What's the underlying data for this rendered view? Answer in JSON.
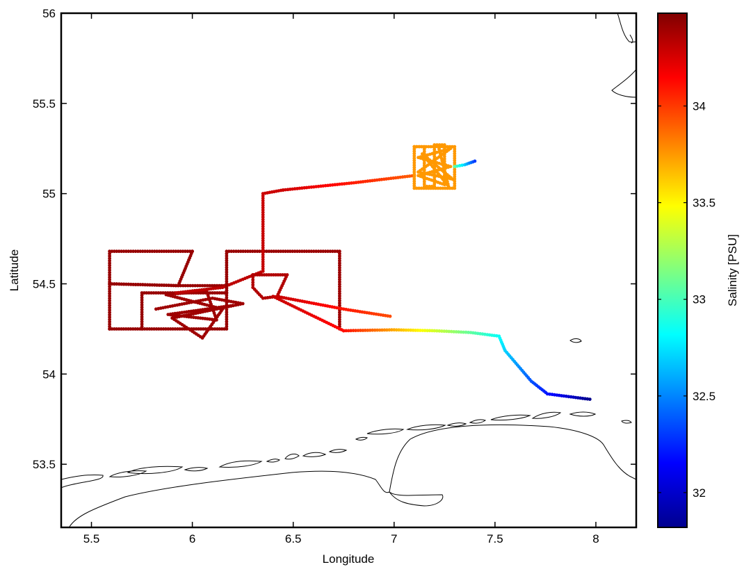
{
  "chart_data": {
    "type": "scatter",
    "title": "",
    "xlabel": "Longitude",
    "ylabel": "Latitude",
    "xlim": [
      5.35,
      8.2
    ],
    "ylim": [
      53.15,
      56
    ],
    "xticks": [
      5.5,
      6,
      6.5,
      7,
      7.5,
      8
    ],
    "xtick_labels": [
      "5.5",
      "6",
      "6.5",
      "7",
      "7.5",
      "8"
    ],
    "yticks": [
      53.5,
      54,
      54.5,
      55,
      55.5,
      56
    ],
    "ytick_labels": [
      "53.5",
      "54",
      "54.5",
      "55",
      "55.5",
      "56"
    ],
    "grid": false,
    "colorbar": {
      "label": "Salinity [PSU]",
      "colormap": "jet",
      "range": [
        31.82,
        34.48
      ],
      "ticks": [
        32,
        32.5,
        33,
        33.5,
        34
      ],
      "tick_labels": [
        "32",
        "32.5",
        "33",
        "33.5",
        "34"
      ]
    },
    "track_segments": [
      {
        "path": [
          [
            5.59,
            54.25
          ],
          [
            5.59,
            54.68
          ],
          [
            6.0,
            54.68
          ]
        ],
        "salinity": [
          34.42,
          34.42
        ]
      },
      {
        "path": [
          [
            6.0,
            54.68
          ],
          [
            5.93,
            54.49
          ],
          [
            5.59,
            54.5
          ],
          [
            5.93,
            54.49
          ],
          [
            6.17,
            54.49
          ],
          [
            6.17,
            54.25
          ],
          [
            5.59,
            54.25
          ]
        ],
        "salinity": [
          34.42,
          34.42
        ]
      },
      {
        "path": [
          [
            5.75,
            54.25
          ],
          [
            5.75,
            54.45
          ],
          [
            6.17,
            54.45
          ]
        ],
        "salinity": [
          34.42,
          34.42
        ]
      },
      {
        "path": [
          [
            5.82,
            54.36
          ],
          [
            6.1,
            54.42
          ],
          [
            6.25,
            54.39
          ],
          [
            5.9,
            54.31
          ],
          [
            6.05,
            54.2
          ],
          [
            6.15,
            54.36
          ],
          [
            5.87,
            54.44
          ],
          [
            6.07,
            54.46
          ],
          [
            6.12,
            54.3
          ],
          [
            5.88,
            54.33
          ],
          [
            6.2,
            54.38
          ]
        ],
        "salinity": [
          34.4,
          34.4
        ]
      },
      {
        "path": [
          [
            5.92,
            54.45
          ],
          [
            6.15,
            54.48
          ],
          [
            6.35,
            54.57
          ]
        ],
        "salinity": [
          34.32,
          34.32
        ]
      },
      {
        "path": [
          [
            6.17,
            54.45
          ],
          [
            6.17,
            54.68
          ],
          [
            6.73,
            54.68
          ],
          [
            6.73,
            54.25
          ]
        ],
        "salinity": [
          34.42,
          34.4
        ]
      },
      {
        "path": [
          [
            6.35,
            54.57
          ],
          [
            6.35,
            55.0
          ],
          [
            6.45,
            55.02
          ]
        ],
        "salinity": [
          34.3,
          34.28
        ]
      },
      {
        "path": [
          [
            6.3,
            54.55
          ],
          [
            6.47,
            54.55
          ],
          [
            6.42,
            54.43
          ],
          [
            6.35,
            54.42
          ],
          [
            6.3,
            54.48
          ],
          [
            6.3,
            54.55
          ]
        ],
        "salinity": [
          34.35,
          34.35
        ]
      },
      {
        "path": [
          [
            6.42,
            54.43
          ],
          [
            6.75,
            54.36
          ],
          [
            6.98,
            54.32
          ]
        ],
        "salinity": [
          34.3,
          33.95
        ]
      },
      {
        "path": [
          [
            6.4,
            54.43
          ],
          [
            6.75,
            54.24
          ]
        ],
        "salinity": [
          34.3,
          34.12
        ]
      },
      {
        "path": [
          [
            6.75,
            54.24
          ],
          [
            7.0,
            54.245
          ],
          [
            7.2,
            54.24
          ],
          [
            7.38,
            54.23
          ],
          [
            7.52,
            54.21
          ],
          [
            7.55,
            54.13
          ],
          [
            7.68,
            53.96
          ],
          [
            7.76,
            53.89
          ],
          [
            7.83,
            53.88
          ],
          [
            7.97,
            53.86
          ]
        ],
        "salinity": [
          34.12,
          31.85
        ]
      },
      {
        "path": [
          [
            6.45,
            55.02
          ],
          [
            6.8,
            55.06
          ],
          [
            7.1,
            55.1
          ]
        ],
        "salinity": [
          34.28,
          33.9
        ]
      },
      {
        "path": [
          [
            7.1,
            55.26
          ],
          [
            7.3,
            55.26
          ],
          [
            7.3,
            55.03
          ],
          [
            7.1,
            55.03
          ],
          [
            7.1,
            55.26
          ],
          [
            7.15,
            55.26
          ],
          [
            7.15,
            55.04
          ],
          [
            7.2,
            55.04
          ],
          [
            7.2,
            55.27
          ],
          [
            7.25,
            55.27
          ],
          [
            7.25,
            55.05
          ],
          [
            7.12,
            55.1
          ],
          [
            7.28,
            55.15
          ],
          [
            7.12,
            55.2
          ],
          [
            7.28,
            55.25
          ],
          [
            7.12,
            55.12
          ],
          [
            7.29,
            55.08
          ],
          [
            7.14,
            55.22
          ],
          [
            7.27,
            55.04
          ],
          [
            7.22,
            55.26
          ]
        ],
        "salinity": [
          33.75,
          33.75
        ]
      },
      {
        "path": [
          [
            7.3,
            55.15
          ],
          [
            7.35,
            55.16
          ],
          [
            7.4,
            55.18
          ]
        ],
        "salinity": [
          33.05,
          32.3
        ]
      }
    ]
  }
}
